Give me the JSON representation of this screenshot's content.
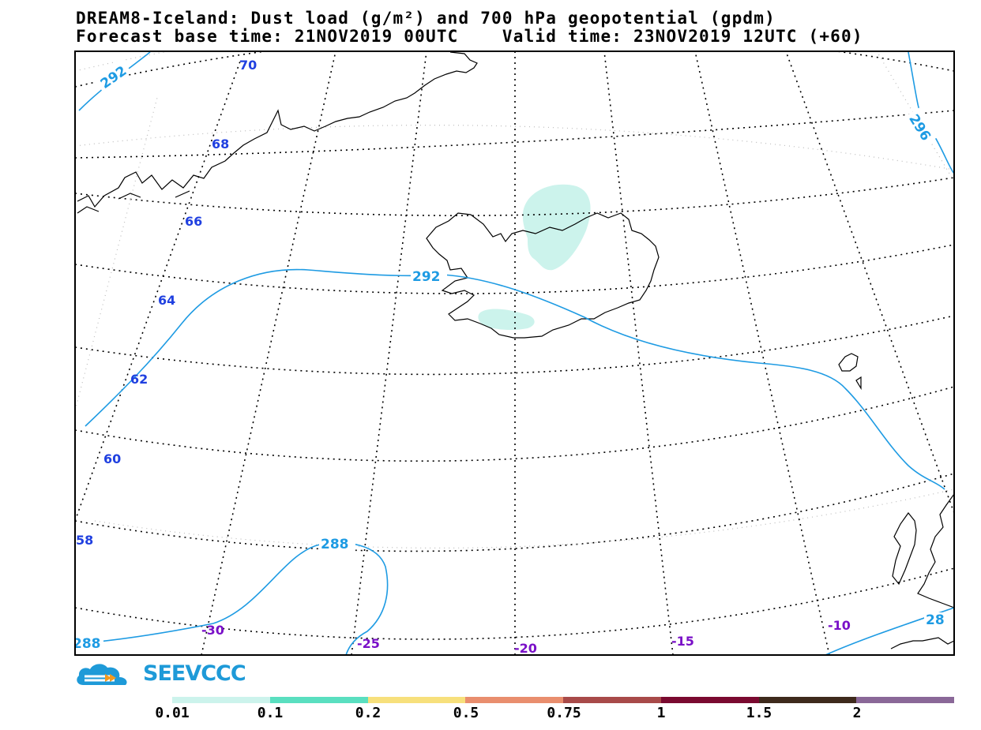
{
  "header": {
    "title": "DREAM8-Iceland: Dust load (g/m²) and 700 hPa geopotential (gpdm)",
    "subtitle": "Forecast base time: 21NOV2019 00UTC    Valid time: 23NOV2019 12UTC (+60)"
  },
  "map": {
    "latitude_labels": [
      "70",
      "68",
      "66",
      "64",
      "62",
      "60",
      "58"
    ],
    "longitude_labels": [
      "-30",
      "-25",
      "-20",
      "-15",
      "-10"
    ],
    "contour_labels": [
      "292",
      "296",
      "292",
      "288",
      "288",
      "28"
    ],
    "colors": {
      "contour": "#1e9be3",
      "lat_label": "#2040e0",
      "lon_label": "#7a10c8",
      "dust_fill": "#ccf3ec",
      "coastline": "#000000"
    }
  },
  "logo": {
    "text": "SEEVCCC"
  },
  "colorbar": {
    "colors": [
      "#ccf3ec",
      "#5adfc0",
      "#f7e07c",
      "#e98e6e",
      "#a84a49",
      "#7a0a30",
      "#3e2a1c",
      "#8a6898"
    ],
    "tick_labels": [
      "0.01",
      "0.1",
      "0.2",
      "0.5",
      "0.75",
      "1",
      "1.5",
      "2"
    ]
  }
}
